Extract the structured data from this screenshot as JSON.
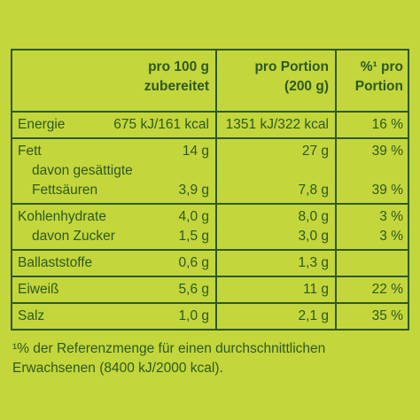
{
  "table": {
    "header": [
      [
        "pro 100 g",
        "zubereitet"
      ],
      [
        "pro Portion",
        "(200 g)"
      ],
      [
        "%¹ pro",
        "Portion"
      ]
    ],
    "groups": [
      [
        {
          "label": [
            "Energie"
          ],
          "values": [
            "675 kJ/161 kcal",
            "1351 kJ/322 kcal",
            "16 %"
          ]
        }
      ],
      [
        {
          "label": [
            "Fett"
          ],
          "values": [
            "14 g",
            "27 g",
            "39 %"
          ]
        },
        {
          "label": [
            "davon gesättigte",
            "Fettsäuren"
          ],
          "values": [
            "3,9 g",
            "7,8 g",
            "39 %"
          ]
        }
      ],
      [
        {
          "label": [
            "Kohlenhydrate"
          ],
          "values": [
            "4,0 g",
            "8,0 g",
            "3 %"
          ]
        },
        {
          "label": [
            "davon Zucker"
          ],
          "values": [
            "1,5 g",
            "3,0 g",
            "3 %"
          ]
        }
      ],
      [
        {
          "label": [
            "Ballaststoffe"
          ],
          "values": [
            "0,6 g",
            "1,3 g",
            ""
          ]
        }
      ],
      [
        {
          "label": [
            "Eiweiß"
          ],
          "values": [
            "5,6 g",
            "11 g",
            "22 %"
          ]
        }
      ],
      [
        {
          "label": [
            "Salz"
          ],
          "values": [
            "1,0 g",
            "2,1 g",
            "35 %"
          ]
        }
      ]
    ],
    "footnote": [
      "¹% der Referenzmenge für einen durchschnittlichen",
      "Erwachsenen (8400 kJ/2000 kcal)."
    ]
  }
}
